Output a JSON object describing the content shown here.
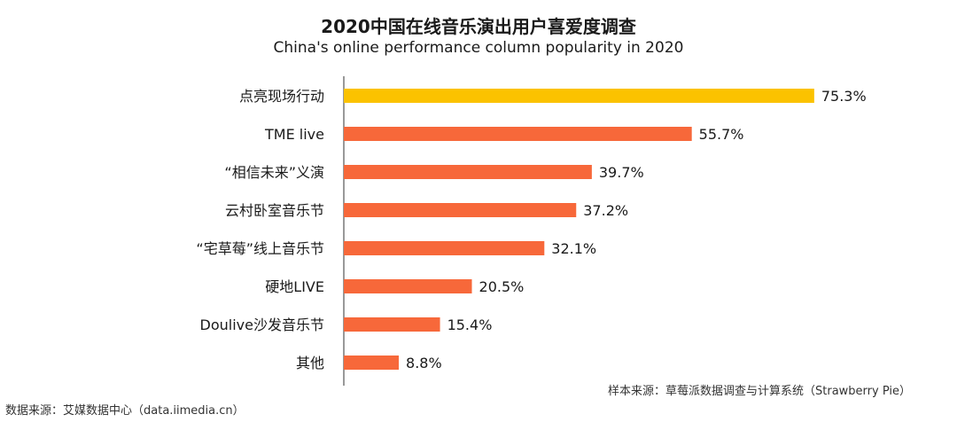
{
  "header": {
    "title": "2020中国在线音乐演出用户喜爱度调查",
    "subtitle": "China's online performance column popularity in 2020"
  },
  "colors": {
    "highlight": "#FBC200",
    "bar": "#F7683A",
    "axis": "#333333"
  },
  "chart_data": {
    "type": "bar",
    "orientation": "horizontal",
    "title": "2020中国在线音乐演出用户喜爱度调查",
    "subtitle": "China's online performance column popularity in 2020",
    "categories": [
      "点亮现场行动",
      "TME live",
      "“相信未来”义演",
      "云村卧室音乐节",
      "“宅草莓”线上音乐节",
      "硬地LIVE",
      "Doulive沙发音乐节",
      "其他"
    ],
    "values": [
      75.3,
      55.7,
      39.7,
      37.2,
      32.1,
      20.5,
      15.4,
      8.8
    ],
    "value_labels": [
      "75.3%",
      "55.7%",
      "39.7%",
      "37.2%",
      "32.1%",
      "20.5%",
      "15.4%",
      "8.8%"
    ],
    "unit": "%",
    "xlim": [
      0,
      100
    ],
    "highlight_index": 0,
    "grid": false,
    "legend": "none"
  },
  "footer": {
    "source_left": "数据来源：艾媒数据中心（data.iimedia.cn）",
    "source_right": "样本来源：草莓派数据调查与计算系统（Strawberry Pie）"
  }
}
